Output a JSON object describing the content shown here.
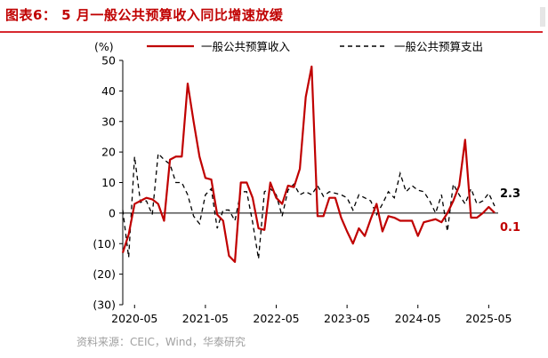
{
  "header": {
    "title": "图表6：  5 月一般公共预算收入同比增速放缓"
  },
  "source_note": "资料来源：CEIC，Wind，华泰研究",
  "colors": {
    "revenue": "#c00000",
    "expenditure": "#000000",
    "title": "#c00000",
    "rule": "#d7282f"
  },
  "chart_data": {
    "type": "line",
    "unit_label": "(%)",
    "ylim": [
      -30,
      50
    ],
    "y_ticks": [
      50,
      40,
      30,
      20,
      10,
      0,
      -10,
      -20,
      -30
    ],
    "y_tick_labels": [
      "50",
      "40",
      "30",
      "20",
      "10",
      "0",
      "(10)",
      "(20)",
      "(30)"
    ],
    "x_tick_labels": [
      "2020-05",
      "2021-05",
      "2022-05",
      "2023-05",
      "2024-05",
      "2025-05"
    ],
    "x_start": "2020-03",
    "x_end": "2025-05",
    "grid": false,
    "legend_position": "top",
    "series": [
      {
        "name": "一般公共预算收入",
        "style": "solid",
        "color": "#c00000",
        "end_label": "0.1",
        "values": [
          -13.0,
          -7.0,
          3.0,
          4.0,
          5.0,
          4.5,
          3.0,
          -2.5,
          17.5,
          18.5,
          18.5,
          42.4,
          30.0,
          18.5,
          11.5,
          11.0,
          -0.5,
          -2.5,
          -14.0,
          -16.0,
          10.0,
          10.0,
          5.0,
          -5.0,
          -5.5,
          10.0,
          5.0,
          3.0,
          9.0,
          8.5,
          14.5,
          38.0,
          48.0,
          -1.0,
          -1.0,
          5.0,
          5.0,
          -1.5,
          -6.0,
          -10.0,
          -5.0,
          -7.5,
          -2.0,
          3.0,
          -6.0,
          -1.0,
          -1.5,
          -2.5,
          -2.5,
          -2.5,
          -7.5,
          -3.0,
          -2.5,
          -2.0,
          -3.0,
          0.0,
          4.0,
          9.0,
          24.0,
          -1.5,
          -1.5,
          0.0,
          2.0,
          0.1
        ]
      },
      {
        "name": "一般公共预算支出",
        "style": "dashed",
        "color": "#000000",
        "end_label": "2.3",
        "values": [
          1.0,
          -14.5,
          18.5,
          3.5,
          4.0,
          -0.5,
          19.5,
          17.5,
          16.0,
          10.0,
          10.0,
          6.0,
          -1.0,
          -3.5,
          6.0,
          8.0,
          -5.0,
          1.0,
          1.0,
          -2.5,
          7.0,
          7.0,
          -3.0,
          -15.0,
          7.0,
          8.0,
          6.0,
          -1.0,
          7.5,
          9.5,
          6.0,
          7.0,
          6.0,
          9.0,
          5.5,
          7.0,
          6.5,
          6.0,
          5.0,
          1.0,
          6.0,
          5.0,
          4.0,
          -0.5,
          3.0,
          7.0,
          5.0,
          13.0,
          7.0,
          9.0,
          7.5,
          7.0,
          4.0,
          0.0,
          6.0,
          -6.0,
          9.5,
          6.0,
          3.0,
          8.0,
          3.0,
          4.0,
          6.5,
          2.3
        ]
      }
    ]
  }
}
